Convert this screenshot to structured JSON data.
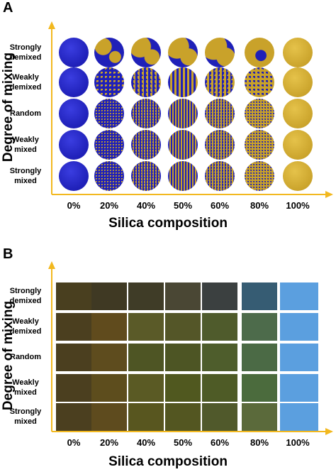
{
  "panels": [
    {
      "id": "A",
      "label": "A",
      "ylabel": "Degree of mixing",
      "xlabel": "Silica composition"
    },
    {
      "id": "B",
      "label": "B",
      "ylabel": "Degree of mixing",
      "xlabel": "Silica composition"
    }
  ],
  "rows": [
    "Strongly\ndemixed",
    "Weakly\ndemixed",
    "Random",
    "Weakly\nmixed",
    "Strongly\nmixed"
  ],
  "columns": [
    "0%",
    "20%",
    "40%",
    "50%",
    "60%",
    "80%",
    "100%"
  ],
  "colors": {
    "axis": "#f2b81f",
    "silica": "#1f20b8",
    "gold": "#c9a22a"
  },
  "panel_b_colors": [
    [
      "#493f1f",
      "#3f3923",
      "#3f3c27",
      "#4a4734",
      "#3b4040",
      "#365c73",
      "#5b9fdf"
    ],
    [
      "#4b3f1f",
      "#604b1d",
      "#5a5a28",
      "#545628",
      "#4f5b2c",
      "#4d6b4b",
      "#5b9fdf"
    ],
    [
      "#4b3f1f",
      "#5e4c1e",
      "#4e5524",
      "#4d5524",
      "#4e5d2c",
      "#4b6a45",
      "#5b9fdf"
    ],
    [
      "#4b3f1f",
      "#5d4d1d",
      "#5a5a24",
      "#50581f",
      "#4e5b26",
      "#4b6b3d",
      "#5b9fdf"
    ],
    [
      "#4b3f1f",
      "#5e4b1e",
      "#58561f",
      "#535621",
      "#50592b",
      "#5b6a3b",
      "#5b9fdf"
    ]
  ]
}
